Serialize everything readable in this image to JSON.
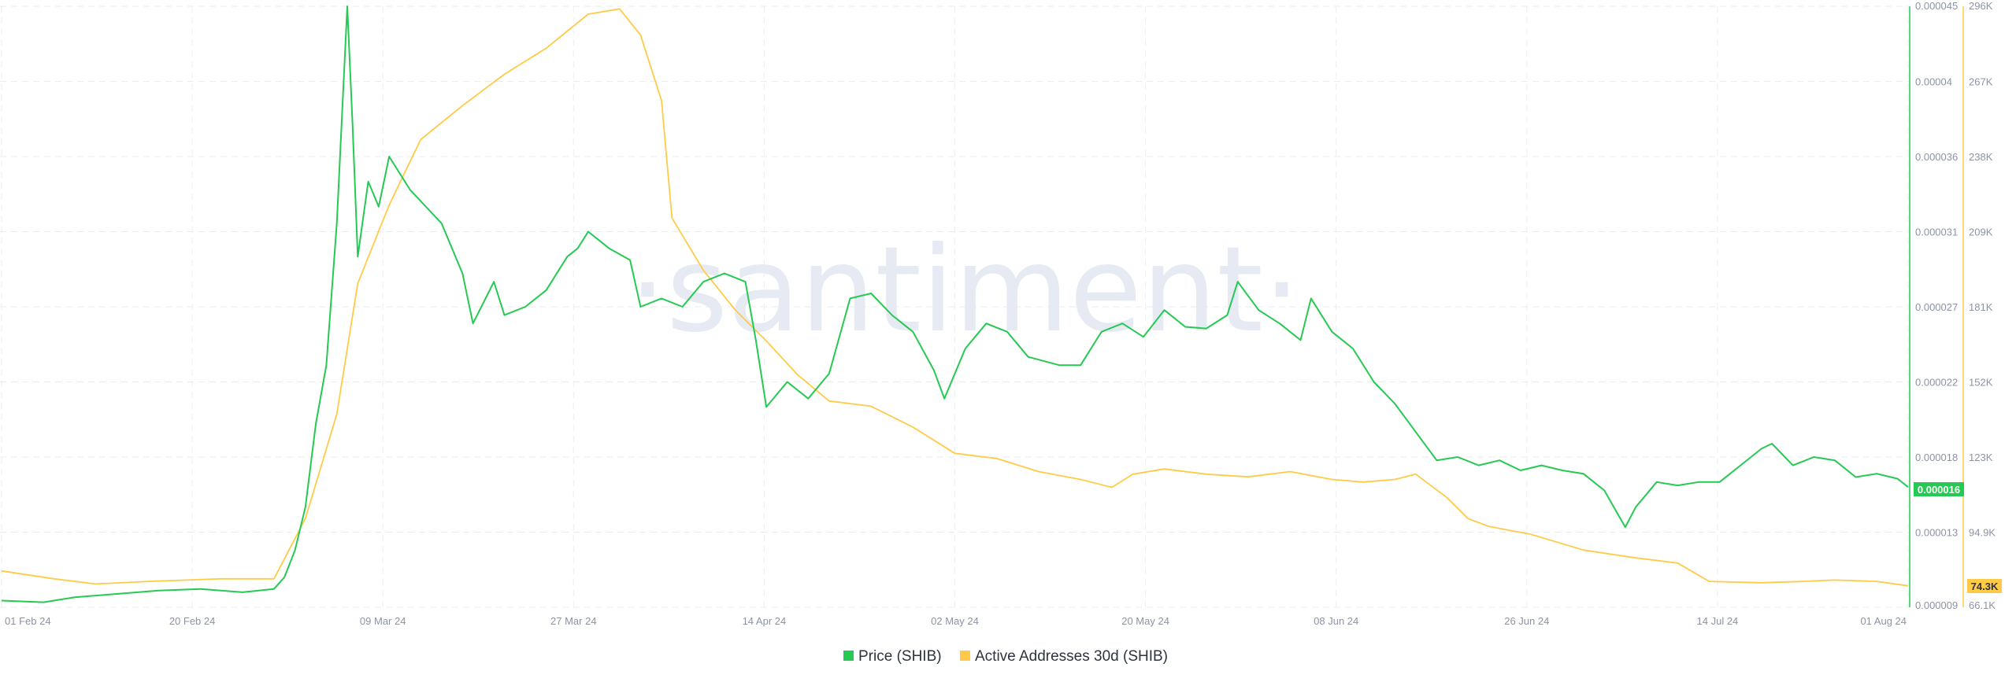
{
  "watermark": "·santiment·",
  "chart_data": {
    "type": "line",
    "x_ticks": [
      "01 Feb 24",
      "20 Feb 24",
      "09 Mar 24",
      "27 Mar 24",
      "14 Apr 24",
      "02 May 24",
      "20 May 24",
      "08 Jun 24",
      "26 Jun 24",
      "14 Jul 24",
      "01 Aug 24"
    ],
    "x_range": [
      "2024-02-01",
      "2024-08-01"
    ],
    "price_axis": {
      "ticks": [
        "0.000045",
        "0.00004",
        "0.000036",
        "0.000031",
        "0.000027",
        "0.000022",
        "0.000018",
        "0.000013",
        "0.000009"
      ],
      "range": [
        9e-06,
        4.5e-05
      ],
      "color": "#26c953"
    },
    "addresses_axis": {
      "ticks": [
        "296K",
        "267K",
        "238K",
        "209K",
        "181K",
        "152K",
        "123K",
        "94.9K",
        "66.1K"
      ],
      "range": [
        66100,
        296000
      ],
      "color": "#ffcb47"
    },
    "current_values": {
      "price": "0.000016",
      "addresses": "74.3K"
    },
    "grid": true,
    "legend_position": "bottom-center",
    "series": [
      {
        "name": "Price (SHIB)",
        "color": "#26c953",
        "points": [
          [
            "2024-02-01",
            9.4e-06
          ],
          [
            "2024-02-05",
            9.3e-06
          ],
          [
            "2024-02-08",
            9.6e-06
          ],
          [
            "2024-02-12",
            9.8e-06
          ],
          [
            "2024-02-16",
            1e-05
          ],
          [
            "2024-02-20",
            1.01e-05
          ],
          [
            "2024-02-24",
            9.9e-06
          ],
          [
            "2024-02-27",
            1.01e-05
          ],
          [
            "2024-02-28",
            1.08e-05
          ],
          [
            "2024-02-29",
            1.24e-05
          ],
          [
            "2024-03-01",
            1.5e-05
          ],
          [
            "2024-03-02",
            2e-05
          ],
          [
            "2024-03-03",
            2.35e-05
          ],
          [
            "2024-03-04",
            3.2e-05
          ],
          [
            "2024-03-05",
            4.5e-05
          ],
          [
            "2024-03-05T12:00",
            3.8e-05
          ],
          [
            "2024-03-06",
            3e-05
          ],
          [
            "2024-03-07",
            3.45e-05
          ],
          [
            "2024-03-08",
            3.3e-05
          ],
          [
            "2024-03-09",
            3.6e-05
          ],
          [
            "2024-03-11",
            3.4e-05
          ],
          [
            "2024-03-14",
            3.2e-05
          ],
          [
            "2024-03-16",
            2.9e-05
          ],
          [
            "2024-03-17",
            2.6e-05
          ],
          [
            "2024-03-19",
            2.85e-05
          ],
          [
            "2024-03-20",
            2.65e-05
          ],
          [
            "2024-03-22",
            2.7e-05
          ],
          [
            "2024-03-24",
            2.8e-05
          ],
          [
            "2024-03-26",
            3e-05
          ],
          [
            "2024-03-27",
            3.05e-05
          ],
          [
            "2024-03-28",
            3.15e-05
          ],
          [
            "2024-03-30",
            3.05e-05
          ],
          [
            "2024-04-01",
            2.98e-05
          ],
          [
            "2024-04-02",
            2.7e-05
          ],
          [
            "2024-04-04",
            2.75e-05
          ],
          [
            "2024-04-06",
            2.7e-05
          ],
          [
            "2024-04-08",
            2.85e-05
          ],
          [
            "2024-04-10",
            2.9e-05
          ],
          [
            "2024-04-12",
            2.85e-05
          ],
          [
            "2024-04-13",
            2.5e-05
          ],
          [
            "2024-04-14",
            2.1e-05
          ],
          [
            "2024-04-16",
            2.25e-05
          ],
          [
            "2024-04-18",
            2.15e-05
          ],
          [
            "2024-04-20",
            2.3e-05
          ],
          [
            "2024-04-22",
            2.75e-05
          ],
          [
            "2024-04-24",
            2.78e-05
          ],
          [
            "2024-04-26",
            2.65e-05
          ],
          [
            "2024-04-28",
            2.55e-05
          ],
          [
            "2024-04-30",
            2.32e-05
          ],
          [
            "2024-05-01",
            2.15e-05
          ],
          [
            "2024-05-03",
            2.45e-05
          ],
          [
            "2024-05-05",
            2.6e-05
          ],
          [
            "2024-05-07",
            2.55e-05
          ],
          [
            "2024-05-09",
            2.4e-05
          ],
          [
            "2024-05-12",
            2.35e-05
          ],
          [
            "2024-05-14",
            2.35e-05
          ],
          [
            "2024-05-16",
            2.55e-05
          ],
          [
            "2024-05-18",
            2.6e-05
          ],
          [
            "2024-05-20",
            2.52e-05
          ],
          [
            "2024-05-22",
            2.68e-05
          ],
          [
            "2024-05-24",
            2.58e-05
          ],
          [
            "2024-05-26",
            2.57e-05
          ],
          [
            "2024-05-28",
            2.65e-05
          ],
          [
            "2024-05-29",
            2.85e-05
          ],
          [
            "2024-05-31",
            2.68e-05
          ],
          [
            "2024-06-02",
            2.6e-05
          ],
          [
            "2024-06-04",
            2.5e-05
          ],
          [
            "2024-06-05",
            2.75e-05
          ],
          [
            "2024-06-07",
            2.55e-05
          ],
          [
            "2024-06-09",
            2.45e-05
          ],
          [
            "2024-06-11",
            2.25e-05
          ],
          [
            "2024-06-13",
            2.12e-05
          ],
          [
            "2024-06-15",
            1.95e-05
          ],
          [
            "2024-06-17",
            1.78e-05
          ],
          [
            "2024-06-19",
            1.8e-05
          ],
          [
            "2024-06-21",
            1.75e-05
          ],
          [
            "2024-06-23",
            1.78e-05
          ],
          [
            "2024-06-25",
            1.72e-05
          ],
          [
            "2024-06-27",
            1.75e-05
          ],
          [
            "2024-06-29",
            1.72e-05
          ],
          [
            "2024-07-01",
            1.7e-05
          ],
          [
            "2024-07-03",
            1.6e-05
          ],
          [
            "2024-07-05",
            1.38e-05
          ],
          [
            "2024-07-06",
            1.5e-05
          ],
          [
            "2024-07-08",
            1.65e-05
          ],
          [
            "2024-07-10",
            1.63e-05
          ],
          [
            "2024-07-12",
            1.65e-05
          ],
          [
            "2024-07-14",
            1.65e-05
          ],
          [
            "2024-07-16",
            1.75e-05
          ],
          [
            "2024-07-18",
            1.85e-05
          ],
          [
            "2024-07-19",
            1.88e-05
          ],
          [
            "2024-07-21",
            1.75e-05
          ],
          [
            "2024-07-23",
            1.8e-05
          ],
          [
            "2024-07-25",
            1.78e-05
          ],
          [
            "2024-07-27",
            1.68e-05
          ],
          [
            "2024-07-29",
            1.7e-05
          ],
          [
            "2024-07-31",
            1.67e-05
          ],
          [
            "2024-08-01",
            1.62e-05
          ]
        ]
      },
      {
        "name": "Active Addresses 30d (SHIB)",
        "color": "#ffcb47",
        "points": [
          [
            "2024-02-01",
            80000
          ],
          [
            "2024-02-06",
            77000
          ],
          [
            "2024-02-10",
            75000
          ],
          [
            "2024-02-15",
            76000
          ],
          [
            "2024-02-22",
            77000
          ],
          [
            "2024-02-27",
            77000
          ],
          [
            "2024-03-01",
            100000
          ],
          [
            "2024-03-04",
            140000
          ],
          [
            "2024-03-06",
            190000
          ],
          [
            "2024-03-09",
            220000
          ],
          [
            "2024-03-12",
            245000
          ],
          [
            "2024-03-16",
            258000
          ],
          [
            "2024-03-20",
            270000
          ],
          [
            "2024-03-24",
            280000
          ],
          [
            "2024-03-28",
            293000
          ],
          [
            "2024-03-31",
            295000
          ],
          [
            "2024-04-02",
            285000
          ],
          [
            "2024-04-04",
            260000
          ],
          [
            "2024-04-05",
            215000
          ],
          [
            "2024-04-08",
            195000
          ],
          [
            "2024-04-11",
            180000
          ],
          [
            "2024-04-14",
            168000
          ],
          [
            "2024-04-17",
            155000
          ],
          [
            "2024-04-20",
            145000
          ],
          [
            "2024-04-24",
            143000
          ],
          [
            "2024-04-28",
            135000
          ],
          [
            "2024-05-02",
            125000
          ],
          [
            "2024-05-06",
            123000
          ],
          [
            "2024-05-10",
            118000
          ],
          [
            "2024-05-14",
            115000
          ],
          [
            "2024-05-17",
            112000
          ],
          [
            "2024-05-19",
            117000
          ],
          [
            "2024-05-22",
            119000
          ],
          [
            "2024-05-26",
            117000
          ],
          [
            "2024-05-30",
            116000
          ],
          [
            "2024-06-03",
            118000
          ],
          [
            "2024-06-07",
            115000
          ],
          [
            "2024-06-10",
            114000
          ],
          [
            "2024-06-13",
            115000
          ],
          [
            "2024-06-15",
            117000
          ],
          [
            "2024-06-18",
            108000
          ],
          [
            "2024-06-20",
            100000
          ],
          [
            "2024-06-22",
            97000
          ],
          [
            "2024-06-26",
            94000
          ],
          [
            "2024-07-01",
            88000
          ],
          [
            "2024-07-06",
            85000
          ],
          [
            "2024-07-10",
            83000
          ],
          [
            "2024-07-13",
            76000
          ],
          [
            "2024-07-18",
            75500
          ],
          [
            "2024-07-22",
            76000
          ],
          [
            "2024-07-25",
            76500
          ],
          [
            "2024-07-29",
            76000
          ],
          [
            "2024-08-01",
            74300
          ]
        ]
      }
    ]
  }
}
